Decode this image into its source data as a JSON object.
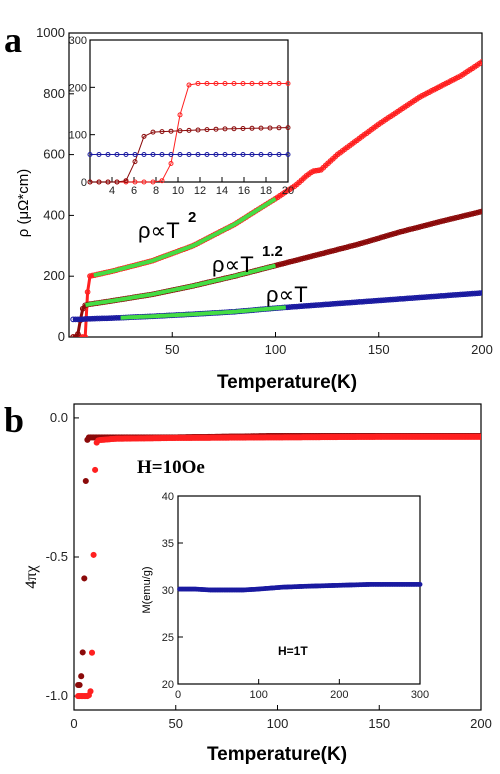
{
  "chart_data": [
    {
      "panel_label": "a",
      "type": "scatter",
      "xlabel": "Temperature(K)",
      "ylabel": "ρ (μΩ*cm)",
      "xlim": [
        0,
        200
      ],
      "ylim": [
        0,
        1000
      ],
      "x_ticks": [
        "50",
        "100",
        "150",
        "200"
      ],
      "y_ticks": [
        "0",
        "200",
        "400",
        "600",
        "800",
        "1000"
      ],
      "annotations": [
        {
          "base": "ρ∝T",
          "sup": "2"
        },
        {
          "base": "ρ∝T",
          "sup": "1.2"
        },
        {
          "base": "ρ∝T",
          "sup": ""
        }
      ],
      "series": [
        {
          "color": "#ff2020",
          "x": [
            2,
            5,
            8,
            8.5,
            9,
            9.5,
            10,
            11,
            12,
            20,
            40,
            60,
            80,
            100,
            110,
            115,
            118,
            122,
            130,
            150,
            170,
            190,
            200
          ],
          "y": [
            0,
            0,
            0,
            60,
            150,
            195,
            200,
            202,
            203,
            215,
            250,
            300,
            370,
            455,
            500,
            530,
            545,
            550,
            600,
            700,
            790,
            860,
            905
          ]
        },
        {
          "color": "#8b0a0a",
          "x": [
            2,
            4,
            5,
            6,
            7,
            8,
            10,
            20,
            40,
            60,
            80,
            100,
            120,
            140,
            160,
            180,
            200
          ],
          "y": [
            0,
            0,
            30,
            80,
            100,
            105,
            108,
            118,
            140,
            168,
            200,
            235,
            270,
            305,
            345,
            380,
            413
          ]
        },
        {
          "color": "#1a1aa0",
          "x": [
            2,
            5,
            10,
            20,
            40,
            60,
            80,
            100,
            120,
            140,
            160,
            180,
            200
          ],
          "y": [
            58,
            58,
            60,
            62,
            68,
            75,
            83,
            95,
            105,
            115,
            125,
            135,
            145
          ]
        }
      ],
      "fits": [
        {
          "color": "#44dd44",
          "x_range": [
            12,
            100
          ],
          "y": [
            203,
            455
          ]
        },
        {
          "color": "#44dd44",
          "x_range": [
            8,
            100
          ],
          "y": [
            105,
            235
          ]
        },
        {
          "color": "#44dd44",
          "x_range": [
            25,
            105
          ],
          "y": [
            64,
            95
          ]
        }
      ],
      "inset": {
        "xlim": [
          2,
          20
        ],
        "ylim": [
          0,
          300
        ],
        "x_ticks": [
          "4",
          "6",
          "8",
          "10",
          "12",
          "14",
          "16",
          "18",
          "20"
        ],
        "y_ticks": [
          "0",
          "100",
          "200",
          "300"
        ],
        "series": [
          {
            "color": "#ff2020",
            "x": [
              2,
              4,
              6,
              8,
              8.5,
              9,
              9.5,
              10,
              10.5,
              11,
              11.5,
              12,
              14,
              16,
              18,
              20
            ],
            "y": [
              0,
              0,
              0,
              0,
              2,
              10,
              50,
              120,
              180,
              205,
              208,
              208,
              208,
              208,
              208,
              208
            ]
          },
          {
            "color": "#8b0a0a",
            "x": [
              2,
              4,
              5,
              5.5,
              6,
              6.5,
              7,
              7.5,
              8,
              10,
              12,
              14,
              16,
              18,
              20
            ],
            "y": [
              0,
              0,
              0,
              5,
              35,
              80,
              100,
              105,
              106,
              108,
              110,
              112,
              113,
              114,
              115
            ]
          },
          {
            "color": "#1a1aa0",
            "x": [
              2,
              4,
              6,
              8,
              10,
              12,
              14,
              16,
              18,
              20
            ],
            "y": [
              58,
              58,
              58,
              58,
              58,
              58,
              58,
              58,
              58,
              58
            ]
          }
        ]
      }
    },
    {
      "panel_label": "b",
      "type": "scatter",
      "xlabel": "Temperature(K)",
      "ylabel": "4πχ",
      "field_label": "H=10Oe",
      "xlim": [
        0,
        200
      ],
      "ylim": [
        -1.05,
        0.05
      ],
      "x_ticks": [
        "0",
        "50",
        "100",
        "150",
        "200"
      ],
      "y_ticks": [
        "0.0",
        "-0.5",
        "-1.0"
      ],
      "series": [
        {
          "color": "#8b0a0a",
          "x": [
            2,
            3,
            4,
            4.5,
            5,
            5.5,
            6,
            6.5,
            7,
            8,
            10,
            20,
            50,
            100,
            150,
            200
          ],
          "y": [
            -0.96,
            -0.96,
            -0.9,
            -0.8,
            -0.6,
            -0.35,
            -0.15,
            -0.08,
            -0.07,
            -0.07,
            -0.07,
            -0.07,
            -0.07,
            -0.065,
            -0.065,
            -0.065
          ]
        },
        {
          "color": "#ff2020",
          "x": [
            2,
            4,
            6,
            7,
            8,
            8.5,
            9,
            9.5,
            10,
            10.5,
            11,
            12,
            20,
            50,
            100,
            150,
            200
          ],
          "y": [
            -1.0,
            -1.0,
            -1.0,
            -1.0,
            -0.99,
            -0.95,
            -0.8,
            -0.55,
            -0.3,
            -0.15,
            -0.09,
            -0.08,
            -0.075,
            -0.072,
            -0.07,
            -0.068,
            -0.068
          ]
        }
      ],
      "inset": {
        "ylabel": "M(emu/g)",
        "field_label": "H=1T",
        "xlim": [
          0,
          300
        ],
        "ylim": [
          20,
          40
        ],
        "x_ticks": [
          "0",
          "100",
          "200",
          "300"
        ],
        "y_ticks": [
          "20",
          "25",
          "30",
          "35",
          "40"
        ],
        "series": [
          {
            "color": "#1a1aa0",
            "x": [
              2,
              20,
              40,
              60,
              80,
              100,
              130,
              160,
              200,
              240,
              280,
              300
            ],
            "y": [
              30.1,
              30.1,
              30.0,
              30.0,
              30.0,
              30.1,
              30.3,
              30.4,
              30.5,
              30.6,
              30.6,
              30.6
            ]
          }
        ]
      }
    }
  ]
}
